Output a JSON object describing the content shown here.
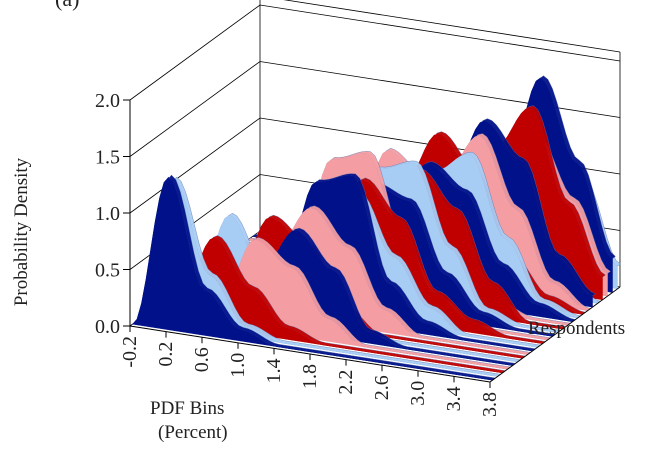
{
  "chart": {
    "panel_label": "(a)",
    "ylabel": "Probability Density",
    "xlabel_line1": "PDF Bins",
    "xlabel_line2": "(Percent)",
    "zlabel": "Respondents"
  },
  "colors": {
    "dark_blue": "#00118a",
    "light_blue": "#a8cdf5",
    "red": "#c00000",
    "pink": "#f49ea3",
    "axis": "#000000"
  },
  "chart_data": {
    "type": "area",
    "subtype": "3d-ribbon",
    "xlabel": "PDF Bins (Percent)",
    "ylabel": "Probability Density",
    "zlabel": "Respondents",
    "x_ticks": [
      "-0.2",
      "0.2",
      "0.6",
      "1.0",
      "1.4",
      "1.8",
      "2.2",
      "2.6",
      "3.0",
      "3.4",
      "3.8"
    ],
    "y_ticks": [
      "0.0",
      "0.5",
      "1.0",
      "1.5",
      "2.0"
    ],
    "ylim": [
      0,
      2.0
    ],
    "grid": true,
    "series": [
      {
        "values": [
          0.0,
          1.35,
          0.4,
          0.1,
          0.0,
          0.0,
          0.0,
          0.0,
          0.0,
          0.0,
          0.0
        ]
      },
      {
        "values": [
          0.0,
          1.3,
          0.5,
          0.1,
          0.0,
          0.0,
          0.0,
          0.0,
          0.0,
          0.0,
          0.0
        ]
      },
      {
        "values": [
          0.0,
          0.2,
          0.8,
          0.4,
          0.1,
          0.0,
          0.0,
          0.0,
          0.0,
          0.0,
          0.0
        ]
      },
      {
        "values": [
          0.0,
          0.0,
          0.2,
          0.8,
          0.6,
          0.2,
          0.0,
          0.0,
          0.0,
          0.0,
          0.0
        ]
      },
      {
        "values": [
          0.0,
          0.0,
          0.1,
          0.5,
          0.9,
          0.6,
          0.1,
          0.0,
          0.0,
          0.0,
          0.0
        ]
      },
      {
        "values": [
          0.0,
          0.1,
          0.9,
          0.4,
          0.1,
          0.0,
          0.0,
          0.0,
          0.0,
          0.0,
          0.0
        ]
      },
      {
        "values": [
          0.0,
          0.0,
          0.3,
          0.9,
          0.7,
          0.2,
          0.0,
          0.0,
          0.0,
          0.0,
          0.0
        ]
      },
      {
        "values": [
          0.0,
          0.0,
          0.1,
          0.6,
          1.0,
          0.7,
          0.2,
          0.0,
          0.0,
          0.0,
          0.0
        ]
      },
      {
        "values": [
          0.0,
          0.0,
          0.0,
          0.3,
          1.2,
          1.3,
          0.4,
          0.1,
          0.0,
          0.0,
          0.0
        ]
      },
      {
        "values": [
          0.0,
          0.0,
          0.0,
          0.2,
          0.7,
          1.1,
          0.6,
          0.2,
          0.0,
          0.0,
          0.0
        ]
      },
      {
        "values": [
          0.0,
          0.0,
          0.0,
          0.1,
          0.6,
          1.2,
          0.9,
          0.3,
          0.1,
          0.0,
          0.0
        ]
      },
      {
        "values": [
          0.0,
          0.0,
          0.0,
          0.3,
          1.3,
          1.4,
          0.6,
          0.2,
          0.0,
          0.0,
          0.0
        ]
      },
      {
        "values": [
          0.0,
          0.0,
          0.0,
          0.1,
          0.5,
          1.1,
          1.0,
          0.4,
          0.1,
          0.0,
          0.0
        ]
      },
      {
        "values": [
          0.0,
          0.0,
          0.0,
          0.0,
          0.4,
          1.2,
          1.3,
          0.6,
          0.1,
          0.0,
          0.0
        ]
      },
      {
        "values": [
          0.0,
          0.0,
          0.0,
          0.0,
          0.3,
          0.9,
          1.2,
          0.9,
          0.3,
          0.0,
          0.0
        ]
      },
      {
        "values": [
          0.0,
          0.0,
          0.0,
          0.0,
          0.5,
          1.3,
          1.1,
          0.5,
          0.1,
          0.0,
          0.0
        ]
      },
      {
        "values": [
          0.0,
          0.0,
          0.0,
          0.0,
          0.2,
          0.8,
          1.2,
          1.0,
          0.4,
          0.1,
          0.0
        ]
      },
      {
        "values": [
          0.0,
          0.0,
          0.0,
          0.0,
          0.1,
          0.6,
          1.1,
          1.3,
          0.6,
          0.1,
          0.0
        ]
      },
      {
        "values": [
          0.0,
          0.0,
          0.0,
          0.0,
          0.2,
          0.9,
          1.4,
          1.1,
          0.4,
          0.1,
          0.0
        ]
      },
      {
        "values": [
          0.0,
          0.0,
          0.0,
          0.0,
          0.1,
          0.5,
          1.0,
          1.4,
          0.8,
          0.2,
          0.0
        ]
      },
      {
        "values": [
          0.0,
          0.0,
          0.0,
          0.0,
          0.0,
          0.3,
          0.9,
          1.5,
          1.2,
          0.4,
          0.1
        ]
      },
      {
        "values": [
          0.0,
          0.0,
          0.0,
          0.0,
          0.0,
          0.4,
          1.1,
          1.3,
          0.7,
          0.2,
          0.0
        ]
      },
      {
        "values": [
          0.0,
          0.0,
          0.0,
          0.0,
          0.0,
          0.2,
          0.7,
          1.2,
          1.6,
          0.8,
          0.2
        ]
      },
      {
        "values": [
          0.0,
          0.0,
          0.0,
          0.0,
          0.0,
          0.1,
          0.5,
          1.1,
          1.3,
          0.8,
          0.2
        ]
      },
      {
        "values": [
          0.0,
          0.0,
          0.0,
          0.0,
          0.0,
          0.1,
          0.3,
          0.9,
          1.8,
          1.1,
          0.3
        ]
      },
      {
        "values": [
          0.0,
          0.0,
          0.0,
          0.0,
          0.0,
          0.0,
          0.2,
          0.7,
          1.3,
          0.9,
          0.2
        ]
      }
    ]
  }
}
